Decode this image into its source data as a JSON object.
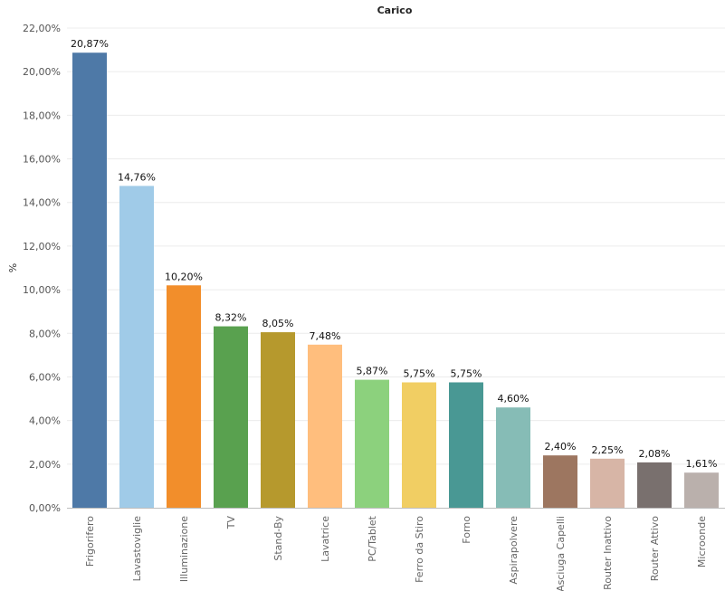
{
  "chart_data": {
    "type": "bar",
    "title": "Carico",
    "xlabel": "",
    "ylabel": "%",
    "ylim": [
      0,
      22
    ],
    "yticks": [
      0,
      2,
      4,
      6,
      8,
      10,
      12,
      14,
      16,
      18,
      20,
      22
    ],
    "ytick_labels": [
      "0,00%",
      "2,00%",
      "4,00%",
      "6,00%",
      "8,00%",
      "10,00%",
      "12,00%",
      "14,00%",
      "16,00%",
      "18,00%",
      "20,00%",
      "22,00%"
    ],
    "grid": true,
    "categories": [
      "Frigorifero",
      "Lavastoviglie",
      "Illuminazione",
      "TV",
      "Stand-By",
      "Lavatrice",
      "PC/Tablet",
      "Ferro da Stiro",
      "Forno",
      "Aspirapolvere",
      "Asciuga Capelli",
      "Router Inattivo",
      "Router Attivo",
      "Microonde"
    ],
    "values": [
      20.87,
      14.76,
      10.2,
      8.32,
      8.05,
      7.48,
      5.87,
      5.75,
      5.75,
      4.6,
      2.4,
      2.25,
      2.08,
      1.61
    ],
    "data_labels": [
      "20,87%",
      "14,76%",
      "10,20%",
      "8,32%",
      "8,05%",
      "7,48%",
      "5,87%",
      "5,75%",
      "5,75%",
      "4,60%",
      "2,40%",
      "2,25%",
      "2,08%",
      "1,61%"
    ],
    "colors": [
      "#4e79a7",
      "#a0cbe8",
      "#f28e2b",
      "#59a14f",
      "#b6992d",
      "#ffbe7d",
      "#8cd17d",
      "#f1ce63",
      "#499894",
      "#86bcb6",
      "#9d7660",
      "#d7b5a6",
      "#79706e",
      "#bab0ac"
    ]
  }
}
